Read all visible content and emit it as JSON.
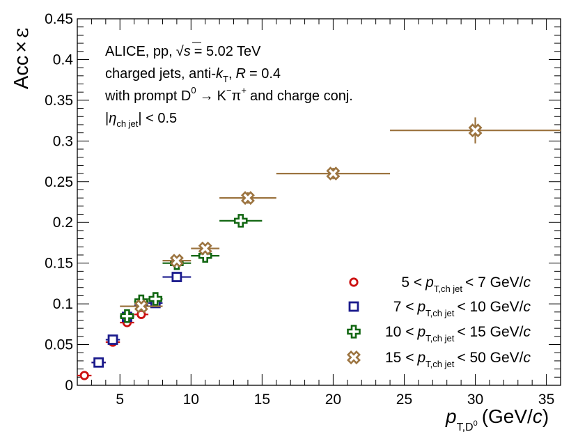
{
  "chart_data": {
    "type": "scatter",
    "title": "",
    "xlabel": "p_T,D0 (GeV/c)",
    "ylabel": "Acc × ε",
    "xlabel_parts": {
      "p": "p",
      "sub": "T,D",
      "sup": "0",
      "unit": "(GeV/",
      "c": "c",
      "close": ")"
    },
    "ylabel_parts": {
      "acc": "Acc",
      "times": "×",
      "eps": "ε"
    },
    "xlim": [
      2,
      36
    ],
    "ylim": [
      0,
      0.45
    ],
    "xticks": [
      5,
      10,
      15,
      20,
      25,
      30,
      35
    ],
    "xtick_labels": [
      "5",
      "10",
      "15",
      "20",
      "25",
      "30",
      "35"
    ],
    "yticks": [
      0,
      0.05,
      0.1,
      0.15,
      0.2,
      0.25,
      0.3,
      0.35,
      0.4,
      0.45
    ],
    "ytick_labels": [
      "0",
      "0.05",
      "0.1",
      "0.15",
      "0.2",
      "0.25",
      "0.3",
      "0.35",
      "0.4",
      "0.45"
    ],
    "grid": false,
    "legend_position": "bottom-right",
    "annotation_lines": [
      "ALICE, pp, √s = 5.02 TeV",
      "charged jets, anti-k_T, R = 0.4",
      "with prompt D0 → K−π+ and charge conj.",
      "|η_ch jet| < 0.5"
    ],
    "annotation_parts": {
      "l1a": "ALICE, pp,",
      "l1root": "√",
      "l1s": "s",
      "l1b": "= 5.02 TeV",
      "l2a": "charged jets, anti-",
      "l2k": "k",
      "l2sub": "T",
      "l2b": ",",
      "l2r": "R",
      "l2c": "= 0.4",
      "l3a": "with prompt D",
      "l3sup0": "0",
      "l3arrow": "→",
      "l3k": "K",
      "l3supm": "−",
      "l3pi": "π",
      "l3supp": "+",
      "l3b": "and charge conj.",
      "l4bar1": "|",
      "l4eta": "η",
      "l4sub": "ch jet",
      "l4b": "| < 0.5"
    },
    "series": [
      {
        "name": "5 < p_T,ch jet < 7 GeV/c",
        "legend_parts": {
          "low": "5 <",
          "p": "p",
          "sub": "T,ch jet",
          "high": "<   7 GeV/",
          "c": "c"
        },
        "marker": "circle",
        "color": "#cc1111",
        "points": [
          {
            "x": 2.5,
            "xerr": 0.5,
            "y": 0.012,
            "yerr": 0.002
          },
          {
            "x": 3.5,
            "xerr": 0.5,
            "y": 0.028,
            "yerr": 0.002
          },
          {
            "x": 4.5,
            "xerr": 0.5,
            "y": 0.053,
            "yerr": 0.003
          },
          {
            "x": 5.5,
            "xerr": 0.5,
            "y": 0.077,
            "yerr": 0.003
          },
          {
            "x": 6.5,
            "xerr": 0.5,
            "y": 0.087,
            "yerr": 0.004
          }
        ]
      },
      {
        "name": "7 < p_T,ch jet < 10 GeV/c",
        "legend_parts": {
          "low": "7 <",
          "p": "p",
          "sub": "T,ch jet",
          "high": "< 10 GeV/",
          "c": "c"
        },
        "marker": "square",
        "color": "#1a1a8c",
        "points": [
          {
            "x": 3.5,
            "xerr": 0.5,
            "y": 0.028,
            "yerr": 0.002
          },
          {
            "x": 4.5,
            "xerr": 0.5,
            "y": 0.056,
            "yerr": 0.003
          },
          {
            "x": 5.5,
            "xerr": 0.5,
            "y": 0.084,
            "yerr": 0.003
          },
          {
            "x": 6.5,
            "xerr": 0.5,
            "y": 0.098,
            "yerr": 0.004
          },
          {
            "x": 7.5,
            "xerr": 0.5,
            "y": 0.101,
            "yerr": 0.004
          },
          {
            "x": 9.0,
            "xerr": 1.0,
            "y": 0.133,
            "yerr": 0.005
          }
        ]
      },
      {
        "name": "10 < p_T,ch jet < 15 GeV/c",
        "legend_parts": {
          "low": "10 <",
          "p": "p",
          "sub": "T,ch jet",
          "high": "< 15 GeV/",
          "c": "c"
        },
        "marker": "cross",
        "color": "#116611",
        "points": [
          {
            "x": 5.5,
            "xerr": 0.5,
            "y": 0.085,
            "yerr": 0.004
          },
          {
            "x": 6.5,
            "xerr": 0.5,
            "y": 0.103,
            "yerr": 0.004
          },
          {
            "x": 7.5,
            "xerr": 0.5,
            "y": 0.106,
            "yerr": 0.004
          },
          {
            "x": 9.0,
            "xerr": 1.0,
            "y": 0.15,
            "yerr": 0.005
          },
          {
            "x": 11.0,
            "xerr": 1.0,
            "y": 0.159,
            "yerr": 0.005
          },
          {
            "x": 13.5,
            "xerr": 1.5,
            "y": 0.202,
            "yerr": 0.006
          }
        ]
      },
      {
        "name": "15 < p_T,ch jet < 50 GeV/c",
        "legend_parts": {
          "low": "15 <",
          "p": "p",
          "sub": "T,ch jet",
          "high": "< 50 GeV/",
          "c": "c"
        },
        "marker": "x-cross",
        "color": "#9c7440",
        "points": [
          {
            "x": 6.5,
            "xerr": 1.5,
            "y": 0.097,
            "yerr": 0.004
          },
          {
            "x": 9.0,
            "xerr": 1.0,
            "y": 0.153,
            "yerr": 0.005
          },
          {
            "x": 11.0,
            "xerr": 1.0,
            "y": 0.168,
            "yerr": 0.005
          },
          {
            "x": 14.0,
            "xerr": 2.0,
            "y": 0.23,
            "yerr": 0.007
          },
          {
            "x": 20.0,
            "xerr": 4.0,
            "y": 0.26,
            "yerr": 0.007
          },
          {
            "x": 30.0,
            "xerr": 6.0,
            "y": 0.313,
            "yerr": 0.016
          }
        ]
      }
    ]
  }
}
